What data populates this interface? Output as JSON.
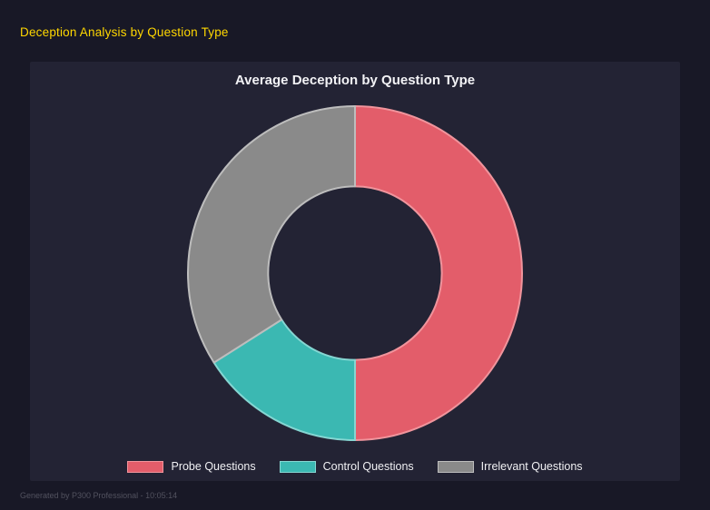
{
  "page": {
    "title": "Deception Analysis by Question Type",
    "footer": "Generated by P300 Professional - 10:05:14"
  },
  "colors": {
    "page_background": "#181826",
    "panel_background": "#232334",
    "header_accent": "#ffd700",
    "title_text": "#f2f2f5",
    "footer_text": "#52525f"
  },
  "chart_data": {
    "type": "pie",
    "subtype": "donut",
    "title": "Average Deception by Question Type",
    "categories": [
      "Probe Questions",
      "Control Questions",
      "Irrelevant Questions"
    ],
    "values": [
      50,
      16,
      34
    ],
    "unit": "percent",
    "colors": [
      "#e35d6a",
      "#3bb8b2",
      "#8a8a8a"
    ],
    "border_colors": [
      "#f0949c",
      "#85d6d2",
      "#bdbdbd"
    ],
    "legend_position": "bottom",
    "start_angle_deg": 0,
    "direction": "clockwise",
    "inner_radius_ratio": 0.52
  }
}
